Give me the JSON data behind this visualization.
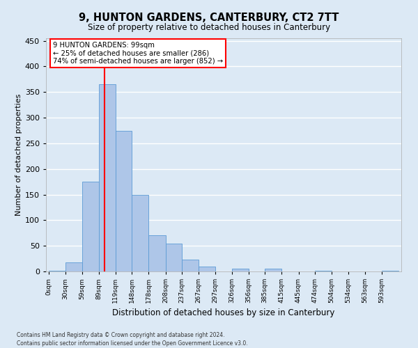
{
  "title": "9, HUNTON GARDENS, CANTERBURY, CT2 7TT",
  "subtitle": "Size of property relative to detached houses in Canterbury",
  "xlabel": "Distribution of detached houses by size in Canterbury",
  "ylabel": "Number of detached properties",
  "bar_labels": [
    "0sqm",
    "30sqm",
    "59sqm",
    "89sqm",
    "119sqm",
    "148sqm",
    "178sqm",
    "208sqm",
    "237sqm",
    "267sqm",
    "297sqm",
    "326sqm",
    "356sqm",
    "385sqm",
    "415sqm",
    "445sqm",
    "474sqm",
    "504sqm",
    "534sqm",
    "563sqm",
    "593sqm"
  ],
  "bar_values": [
    2,
    18,
    175,
    365,
    275,
    150,
    70,
    55,
    23,
    9,
    0,
    5,
    0,
    6,
    0,
    0,
    2,
    0,
    0,
    0,
    2
  ],
  "bar_color": "#aec6e8",
  "bar_edge_color": "#5b9bd5",
  "ylim": [
    0,
    455
  ],
  "yticks": [
    0,
    50,
    100,
    150,
    200,
    250,
    300,
    350,
    400,
    450
  ],
  "annotation_box_title": "9 HUNTON GARDENS: 99sqm",
  "annotation_line1": "← 25% of detached houses are smaller (286)",
  "annotation_line2": "74% of semi-detached houses are larger (852) →",
  "redline_x": 99,
  "bin_starts": [
    0,
    30,
    59,
    89,
    119,
    148,
    178,
    208,
    237,
    267,
    297,
    326,
    356,
    385,
    415,
    445,
    474,
    504,
    534,
    563,
    593
  ],
  "background_color": "#dce9f5",
  "plot_bg_color": "#dce9f5",
  "grid_color": "#ffffff",
  "footer_line1": "Contains HM Land Registry data © Crown copyright and database right 2024.",
  "footer_line2": "Contains public sector information licensed under the Open Government Licence v3.0."
}
